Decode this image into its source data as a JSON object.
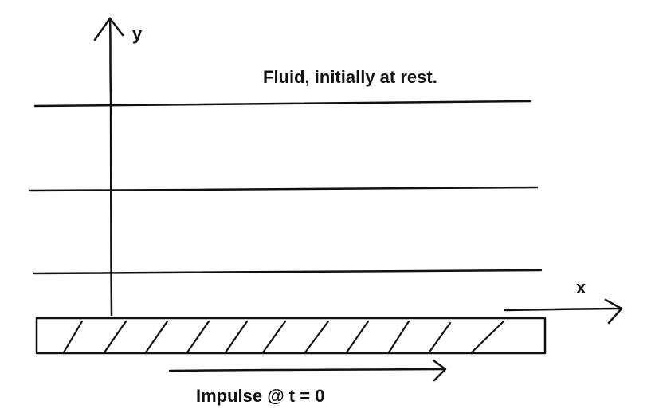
{
  "diagram": {
    "title": "Fluid, initially at rest.",
    "y_axis_label": "y",
    "x_axis_label": "x",
    "impulse_label": "Impulse @ t = 0",
    "ink_color": "#111111",
    "background_color": "#ffffff"
  }
}
